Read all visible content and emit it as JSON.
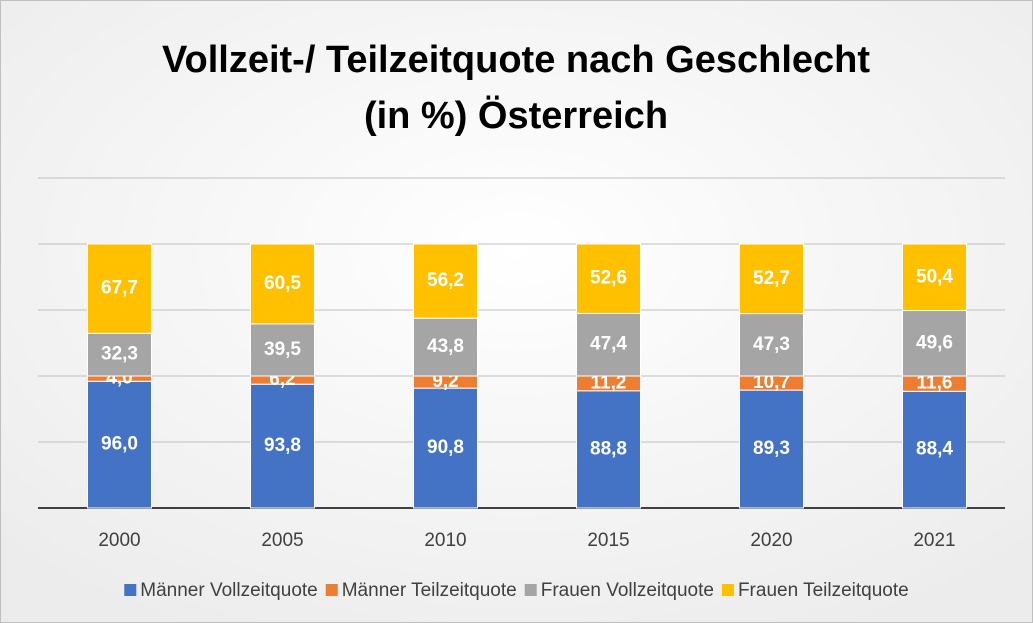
{
  "chart_data": {
    "type": "stacked_bar",
    "title": [
      "Vollzeit-/ Teilzeitquote nach Geschlecht",
      "(in %) Österreich"
    ],
    "categories": [
      "2000",
      "2005",
      "2010",
      "2015",
      "2020",
      "2021"
    ],
    "series": [
      {
        "name": "Männer Vollzeitquote",
        "color": "#4472c4",
        "values": [
          96.0,
          93.8,
          90.8,
          88.8,
          89.3,
          88.4
        ],
        "value_labels": [
          "96,0",
          "93,8",
          "90,8",
          "88,8",
          "89,3",
          "88,4"
        ]
      },
      {
        "name": "Männer Teilzeitquote",
        "color": "#ed7d31",
        "values": [
          4.0,
          6.2,
          9.2,
          11.2,
          10.7,
          11.6
        ],
        "value_labels": [
          "4,0",
          "6,2",
          "9,2",
          "11,2",
          "10,7",
          "11,6"
        ]
      },
      {
        "name": "Frauen Vollzeitquote",
        "color": "#a5a5a5",
        "values": [
          32.3,
          39.5,
          43.8,
          47.4,
          47.3,
          49.6
        ],
        "value_labels": [
          "32,3",
          "39,5",
          "43,8",
          "47,4",
          "47,3",
          "49,6"
        ]
      },
      {
        "name": "Frauen Teilzeitquote",
        "color": "#ffc000",
        "values": [
          67.7,
          60.5,
          56.2,
          52.6,
          52.7,
          50.4
        ],
        "value_labels": [
          "67,7",
          "60,5",
          "56,2",
          "52,6",
          "52,7",
          "50,4"
        ]
      }
    ],
    "ylim": [
      0,
      250
    ],
    "yticks": [
      0,
      50,
      100,
      150,
      200,
      250
    ],
    "grid": true,
    "legend": "bottom"
  }
}
